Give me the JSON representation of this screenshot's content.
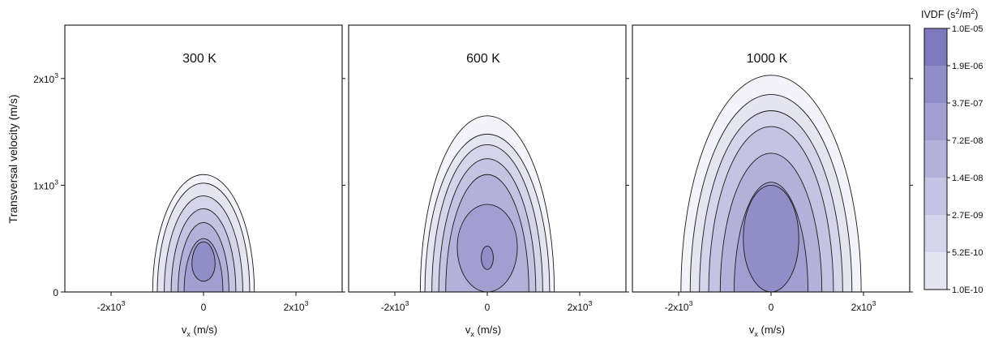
{
  "chart_data": {
    "type": "heatmap",
    "subtype": "filled-contour",
    "ylabel": "Transversal velocity (m/s)",
    "colorbar": {
      "title_base": "IVDF (s",
      "title_sup1": "2",
      "title_mid": "/m",
      "title_sup2": "2",
      "title_end": ")",
      "levels": [
        "1.0E-10",
        "5.2E-10",
        "2.7E-09",
        "1.4E-08",
        "7.2E-08",
        "3.7E-07",
        "1.9E-06",
        "1.0E-05"
      ],
      "colors": [
        "#f4f3fa",
        "#e5e4f1",
        "#d5d4ea",
        "#c4c3e2",
        "#b3b1d9",
        "#a29fd0",
        "#918dc7",
        "#7f7abd"
      ],
      "scale": "log"
    },
    "x_axis": {
      "label_base": "v",
      "label_sub": "x",
      "label_end": " (m/s)",
      "range": [
        -3000,
        3000
      ]
    },
    "y_axis": {
      "range": [
        0,
        2500
      ]
    },
    "panels": [
      {
        "name": "300 K",
        "xticks": [
          {
            "base": "-2x10",
            "sup": "3",
            "value": -2000
          },
          {
            "base": "0",
            "sup": "",
            "value": 0
          },
          {
            "base": "2x10",
            "sup": "3",
            "value": 2000
          }
        ],
        "yticks": [
          {
            "base": "0",
            "sup": "",
            "value": 0
          },
          {
            "base": "1x10",
            "sup": "3",
            "value": 1000
          },
          {
            "base": "2x10",
            "sup": "3",
            "value": 2000
          }
        ],
        "contours": [
          {
            "level": 0,
            "cx": 0,
            "cy": 0,
            "rx": 1100,
            "ry_up": 1100,
            "ry_down": 0
          },
          {
            "level": 1,
            "cx": 0,
            "cy": 0,
            "rx": 1000,
            "ry_up": 1020,
            "ry_down": 0
          },
          {
            "level": 2,
            "cx": 0,
            "cy": 0,
            "rx": 850,
            "ry_up": 900,
            "ry_down": 0
          },
          {
            "level": 3,
            "cx": 0,
            "cy": 0,
            "rx": 700,
            "ry_up": 780,
            "ry_down": 0
          },
          {
            "level": 4,
            "cx": 0,
            "cy": 0,
            "rx": 550,
            "ry_up": 650,
            "ry_down": 0
          },
          {
            "level": 5,
            "cx": 0,
            "cy": 0,
            "rx": 420,
            "ry_up": 500,
            "ry_down": 0
          },
          {
            "level": 6,
            "cx": 0,
            "cy": 260,
            "rx": 250,
            "ry_up": 210,
            "ry_down": 160
          }
        ]
      },
      {
        "name": "600 K",
        "xticks": [
          {
            "base": "-2x10",
            "sup": "3",
            "value": -2000
          },
          {
            "base": "0",
            "sup": "",
            "value": 0
          },
          {
            "base": "2x10",
            "sup": "3",
            "value": 2000
          }
        ],
        "yticks": [],
        "contours": [
          {
            "level": 0,
            "cx": 0,
            "cy": 0,
            "rx": 1450,
            "ry_up": 1650,
            "ry_down": 0
          },
          {
            "level": 1,
            "cx": 0,
            "cy": 0,
            "rx": 1350,
            "ry_up": 1480,
            "ry_down": 0
          },
          {
            "level": 2,
            "cx": 0,
            "cy": 0,
            "rx": 1200,
            "ry_up": 1380,
            "ry_down": 0
          },
          {
            "level": 3,
            "cx": 0,
            "cy": 0,
            "rx": 1050,
            "ry_up": 1250,
            "ry_down": 0
          },
          {
            "level": 4,
            "cx": 0,
            "cy": 0,
            "rx": 900,
            "ry_up": 1100,
            "ry_down": 0
          },
          {
            "level": 5,
            "cx": 0,
            "cy": 420,
            "rx": 650,
            "ry_up": 400,
            "ry_down": 420
          },
          {
            "level": 6,
            "cx": 0,
            "cy": 320,
            "rx": 130,
            "ry_up": 110,
            "ry_down": 110
          }
        ]
      },
      {
        "name": "1000 K",
        "xticks": [
          {
            "base": "-2x10",
            "sup": "3",
            "value": -2000
          },
          {
            "base": "0",
            "sup": "",
            "value": 0
          },
          {
            "base": "2x10",
            "sup": "3",
            "value": 2000
          }
        ],
        "yticks": [],
        "contours": [
          {
            "level": 0,
            "cx": 0,
            "cy": 0,
            "rx": 1950,
            "ry_up": 2030,
            "ry_down": 0
          },
          {
            "level": 1,
            "cx": 0,
            "cy": 0,
            "rx": 1750,
            "ry_up": 1850,
            "ry_down": 0
          },
          {
            "level": 2,
            "cx": 0,
            "cy": 0,
            "rx": 1550,
            "ry_up": 1700,
            "ry_down": 0
          },
          {
            "level": 3,
            "cx": 0,
            "cy": 0,
            "rx": 1350,
            "ry_up": 1550,
            "ry_down": 0
          },
          {
            "level": 4,
            "cx": 0,
            "cy": 0,
            "rx": 1100,
            "ry_up": 1300,
            "ry_down": 0
          },
          {
            "level": 5,
            "cx": 0,
            "cy": 0,
            "rx": 800,
            "ry_up": 1030,
            "ry_down": 0
          },
          {
            "level": 6,
            "cx": 0,
            "cy": 500,
            "rx": 600,
            "ry_up": 500,
            "ry_down": 500
          }
        ]
      }
    ]
  }
}
